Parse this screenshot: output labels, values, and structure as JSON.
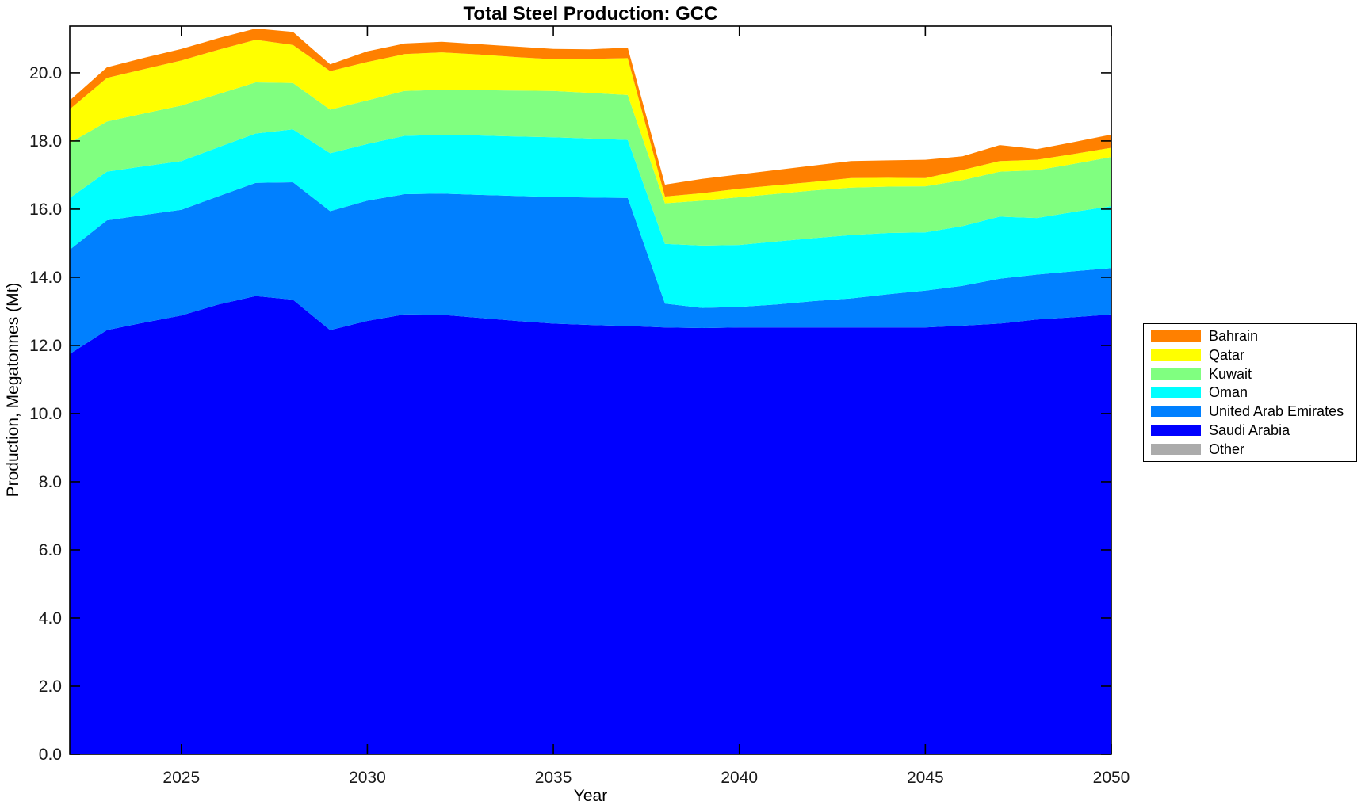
{
  "chart_data": {
    "type": "area",
    "stacked": true,
    "title": "Total Steel Production: GCC",
    "xlabel": "Year",
    "ylabel": "Production, Megatonnes (Mt)",
    "x": [
      2022,
      2023,
      2024,
      2025,
      2026,
      2027,
      2028,
      2029,
      2030,
      2031,
      2032,
      2033,
      2034,
      2035,
      2036,
      2037,
      2038,
      2039,
      2040,
      2041,
      2042,
      2043,
      2044,
      2045,
      2046,
      2047,
      2048,
      2049,
      2050
    ],
    "xlim": [
      2022,
      2050
    ],
    "ylim": [
      0,
      21.37
    ],
    "xticks": [
      2025,
      2030,
      2035,
      2040,
      2045,
      2050
    ],
    "yticks": [
      0,
      2,
      4,
      6,
      8,
      10,
      12,
      14,
      16,
      18,
      20
    ],
    "grid": false,
    "axis_color": "#000000",
    "background": "#FFFFFF",
    "legend_position": "right-outside",
    "legend_order_top_to_bottom": [
      "Bahrain",
      "Qatar",
      "Kuwait",
      "Oman",
      "United Arab Emirates",
      "Saudi Arabia",
      "Other"
    ],
    "series": [
      {
        "name": "Saudi Arabia",
        "color": "#0000FF",
        "values": [
          11.75,
          12.45,
          12.67,
          12.88,
          13.2,
          13.45,
          13.34,
          12.45,
          12.72,
          12.91,
          12.9,
          12.81,
          12.72,
          12.64,
          12.6,
          12.57,
          12.53,
          12.51,
          12.53,
          12.53,
          12.53,
          12.53,
          12.53,
          12.53,
          12.58,
          12.64,
          12.76,
          12.83,
          12.91
        ]
      },
      {
        "name": "United Arab Emirates",
        "color": "#0080FF",
        "values": [
          3.06,
          3.22,
          3.16,
          3.1,
          3.18,
          3.32,
          3.45,
          3.49,
          3.53,
          3.53,
          3.56,
          3.61,
          3.67,
          3.72,
          3.74,
          3.76,
          0.7,
          0.59,
          0.6,
          0.67,
          0.77,
          0.85,
          0.97,
          1.08,
          1.17,
          1.32,
          1.32,
          1.35,
          1.36
        ]
      },
      {
        "name": "Oman",
        "color": "#00FFFF",
        "values": [
          1.52,
          1.43,
          1.43,
          1.43,
          1.44,
          1.45,
          1.55,
          1.7,
          1.66,
          1.71,
          1.72,
          1.74,
          1.74,
          1.75,
          1.73,
          1.7,
          1.75,
          1.83,
          1.82,
          1.85,
          1.85,
          1.86,
          1.8,
          1.71,
          1.75,
          1.82,
          1.66,
          1.74,
          1.82
        ]
      },
      {
        "name": "Kuwait",
        "color": "#80FF80",
        "values": [
          1.61,
          1.47,
          1.55,
          1.63,
          1.56,
          1.5,
          1.36,
          1.28,
          1.28,
          1.32,
          1.32,
          1.33,
          1.35,
          1.36,
          1.34,
          1.32,
          1.19,
          1.32,
          1.4,
          1.4,
          1.4,
          1.39,
          1.36,
          1.35,
          1.35,
          1.32,
          1.4,
          1.41,
          1.44
        ]
      },
      {
        "name": "Qatar",
        "color": "#FFFF00",
        "values": [
          0.99,
          1.28,
          1.3,
          1.32,
          1.3,
          1.25,
          1.12,
          1.13,
          1.13,
          1.08,
          1.1,
          1.05,
          0.98,
          0.93,
          1.0,
          1.08,
          0.2,
          0.22,
          0.25,
          0.25,
          0.25,
          0.28,
          0.26,
          0.24,
          0.3,
          0.31,
          0.31,
          0.29,
          0.27
        ]
      },
      {
        "name": "Bahrain",
        "color": "#FF8000",
        "values": [
          0.26,
          0.31,
          0.33,
          0.34,
          0.34,
          0.33,
          0.38,
          0.2,
          0.31,
          0.31,
          0.31,
          0.3,
          0.31,
          0.3,
          0.28,
          0.31,
          0.35,
          0.42,
          0.42,
          0.45,
          0.48,
          0.5,
          0.51,
          0.54,
          0.4,
          0.47,
          0.31,
          0.35,
          0.39
        ]
      },
      {
        "name": "Other",
        "color": "#ABABAB",
        "values": [
          0,
          0,
          0,
          0,
          0,
          0,
          0,
          0,
          0,
          0,
          0,
          0,
          0,
          0,
          0,
          0,
          0,
          0,
          0,
          0,
          0,
          0,
          0,
          0,
          0,
          0,
          0,
          0,
          0
        ]
      }
    ]
  }
}
